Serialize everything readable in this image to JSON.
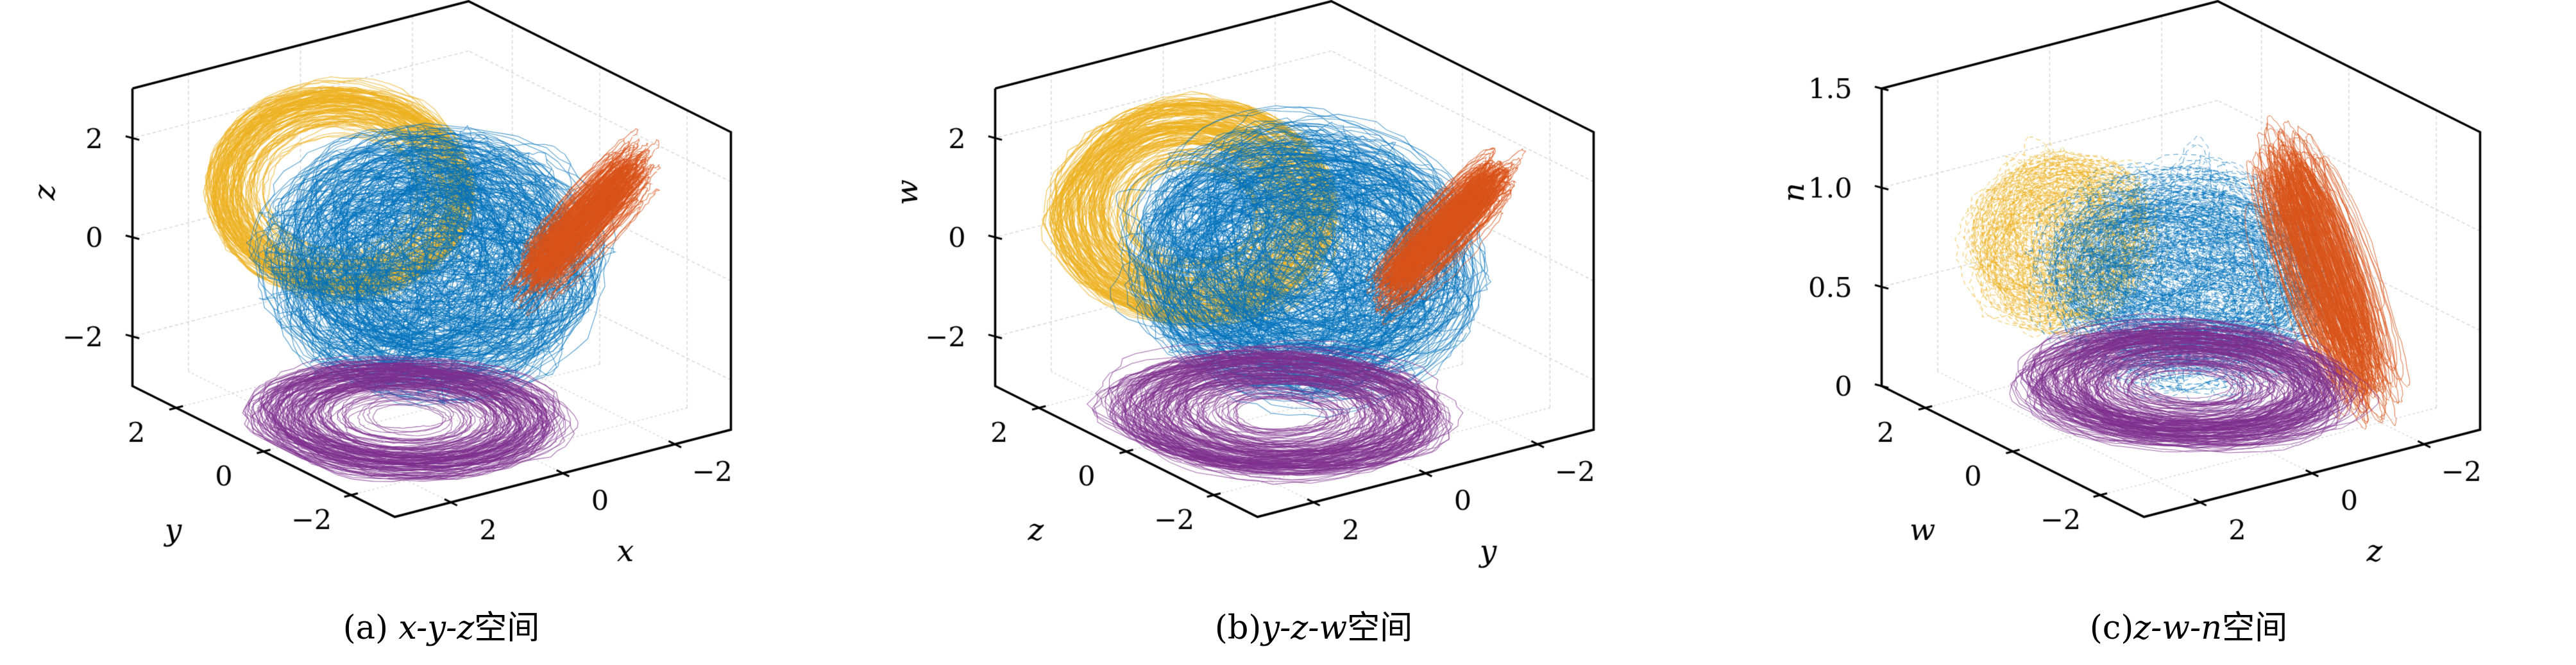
{
  "palette": {
    "blue": "#0072BD",
    "orange": "#D95319",
    "yellow": "#EDB120",
    "purple": "#7E2F8E",
    "box_line": "#000000",
    "grid_line": "#D4D4D4",
    "background": "#FFFFFF"
  },
  "chart_data": [
    {
      "id": "a",
      "type": "scatter",
      "projection": "3d",
      "grid": true,
      "caption": {
        "prefix": "(a) ",
        "vars": "x-y-z",
        "suffix": "空间"
      },
      "axes": {
        "vertical": {
          "label": "z",
          "range": [
            -3,
            3
          ],
          "tick_values": [
            2,
            0,
            -2
          ],
          "tick_labels": [
            "2",
            "0",
            "−2"
          ]
        },
        "bottom_left": {
          "label": "y",
          "range": [
            -3,
            3
          ],
          "tick_values": [
            2,
            0,
            -2
          ],
          "tick_labels": [
            "2",
            "0",
            "−2"
          ]
        },
        "bottom_right": {
          "label": "x",
          "range": [
            -3,
            3
          ],
          "tick_values": [
            2,
            0,
            -2
          ],
          "tick_labels": [
            "2",
            "0",
            "−2"
          ]
        }
      },
      "series": [
        {
          "name": "cluster-yellow",
          "color": "#EDB120",
          "style": "ring",
          "center": [
            0.6,
            1.3,
            0.95
          ],
          "R": 1.85,
          "rmin": 0.5,
          "tube": 0.3,
          "normal": [
            1,
            -1,
            1.05
          ],
          "tilt": 0.22,
          "loops": 125,
          "wobble": 0.05,
          "lw": 1.1,
          "alpha": 0.8
        },
        {
          "name": "cluster-blue",
          "color": "#0072BD",
          "style": "ball",
          "center": [
            0.05,
            -0.05,
            0.0
          ],
          "radii": [
            2.42,
            2.42,
            2.5
          ],
          "loops": 245,
          "wobble": 0.05,
          "lw": 1.05,
          "alpha": 0.72
        },
        {
          "name": "cluster-orange",
          "color": "#D95319",
          "style": "streak",
          "center": [
            -1.5,
            -1.55,
            1.0
          ],
          "A": [
            -0.37,
            -0.76,
            1.3
          ],
          "B": [
            -0.6,
            0.38,
            0.18
          ],
          "centerJitter": [
            0.3,
            0.25,
            0.55
          ],
          "loops": 170,
          "lw": 1.05,
          "alpha": 0.8
        },
        {
          "name": "cluster-purple",
          "color": "#7E2F8E",
          "style": "disk",
          "center": [
            0.9,
            -0.55,
            -2.7
          ],
          "radii": [
            2.15,
            2.15,
            0.1
          ],
          "rmin": 0.15,
          "tilt": 0.05,
          "loops": 135,
          "wobble": 0.09,
          "lw": 1.05,
          "alpha": 0.75
        }
      ]
    },
    {
      "id": "b",
      "type": "scatter",
      "projection": "3d",
      "grid": true,
      "caption": {
        "prefix": "(b)",
        "vars": "y-z-w",
        "suffix": "空间"
      },
      "axes": {
        "vertical": {
          "label": "w",
          "range": [
            -3,
            3
          ],
          "tick_values": [
            2,
            0,
            -2
          ],
          "tick_labels": [
            "2",
            "0",
            "−2"
          ]
        },
        "bottom_left": {
          "label": "z",
          "range": [
            -3,
            3
          ],
          "tick_values": [
            2,
            0,
            -2
          ],
          "tick_labels": [
            "2",
            "0",
            "−2"
          ]
        },
        "bottom_right": {
          "label": "y",
          "range": [
            -3,
            3
          ],
          "tick_values": [
            2,
            0,
            -2
          ],
          "tick_labels": [
            "2",
            "0",
            "−2"
          ]
        }
      },
      "series": [
        {
          "name": "cluster-yellow",
          "color": "#EDB120",
          "style": "ring",
          "center": [
            0.55,
            1.6,
            0.4
          ],
          "R": 2.0,
          "rmin": 0.3,
          "tube": 0.28,
          "normal": [
            1,
            -0.95,
            1.0
          ],
          "tilt": 0.18,
          "loops": 155,
          "wobble": 0.05,
          "lw": 1.1,
          "alpha": 0.8
        },
        {
          "name": "cluster-blue",
          "color": "#0072BD",
          "style": "ball",
          "center": [
            -0.1,
            -0.05,
            -0.05
          ],
          "radii": [
            2.45,
            2.45,
            2.5
          ],
          "loops": 245,
          "wobble": 0.05,
          "lw": 1.05,
          "alpha": 0.72
        },
        {
          "name": "cluster-orange",
          "color": "#D95319",
          "style": "streak",
          "center": [
            -1.5,
            -1.5,
            0.8
          ],
          "A": [
            -0.4,
            -0.78,
            1.28
          ],
          "B": [
            -0.65,
            0.42,
            0.22
          ],
          "centerJitter": [
            0.28,
            0.22,
            0.5
          ],
          "loops": 165,
          "lw": 1.05,
          "alpha": 0.8
        },
        {
          "name": "cluster-purple",
          "color": "#7E2F8E",
          "style": "disk",
          "center": [
            0.75,
            -0.6,
            -2.62
          ],
          "radii": [
            2.3,
            2.3,
            0.15
          ],
          "rmin": 0.15,
          "tilt": 0.06,
          "loops": 150,
          "wobble": 0.13,
          "lw": 1.05,
          "alpha": 0.72
        }
      ]
    },
    {
      "id": "c",
      "type": "scatter",
      "projection": "3d",
      "grid": true,
      "caption": {
        "prefix": "(c)",
        "vars": "z-w-n",
        "suffix": "空间"
      },
      "axes": {
        "vertical": {
          "label": "n",
          "range": [
            0,
            1.5
          ],
          "tick_values": [
            1.5,
            1.0,
            0.5,
            0
          ],
          "tick_labels": [
            "1.5",
            "1.0",
            "0.5",
            "0"
          ]
        },
        "bottom_left": {
          "label": "w",
          "range": [
            -3,
            3
          ],
          "tick_values": [
            2,
            0,
            -2
          ],
          "tick_labels": [
            "2",
            "0",
            "−2"
          ]
        },
        "bottom_right": {
          "label": "z",
          "range": [
            -3,
            3
          ],
          "tick_values": [
            2,
            0,
            -2
          ],
          "tick_labels": [
            "2",
            "0",
            "−2"
          ]
        }
      },
      "series": [
        {
          "name": "cluster-yellow",
          "color": "#EDB120",
          "style": "ball",
          "center": [
            0.8,
            1.7,
            0.72
          ],
          "radii": [
            1.45,
            1.15,
            0.42
          ],
          "loops": 135,
          "wobble": 0.12,
          "dash": [
            7,
            5
          ],
          "lw": 1.0,
          "alpha": 0.8
        },
        {
          "name": "cluster-blue",
          "color": "#0072BD",
          "style": "ball",
          "center": [
            -0.1,
            -0.05,
            0.66
          ],
          "radii": [
            2.15,
            2.15,
            0.55
          ],
          "squashB": 0.5,
          "loops": 235,
          "wobble": 0.07,
          "dash": [
            8,
            6
          ],
          "lw": 1.0,
          "alpha": 0.72
        },
        {
          "name": "cluster-orange",
          "color": "#D95319",
          "style": "streak",
          "center": [
            -1.35,
            -1.55,
            0.78
          ],
          "A": [
            0,
            -1.05,
            -0.52
          ],
          "B": [
            -0.45,
            0.25,
            -0.04
          ],
          "centerJitter": [
            0.55,
            0.35,
            0.16
          ],
          "loops": 170,
          "lw": 1.0,
          "alpha": 0.85
        },
        {
          "name": "cluster-purple",
          "color": "#7E2F8E",
          "style": "disk",
          "center": [
            0.15,
            -0.35,
            0.16
          ],
          "radii": [
            2.2,
            2.2,
            0.06
          ],
          "rmin": 0.2,
          "tilt": 0.05,
          "loops": 155,
          "wobble": 0.12,
          "lw": 1.05,
          "alpha": 0.75
        }
      ]
    }
  ]
}
